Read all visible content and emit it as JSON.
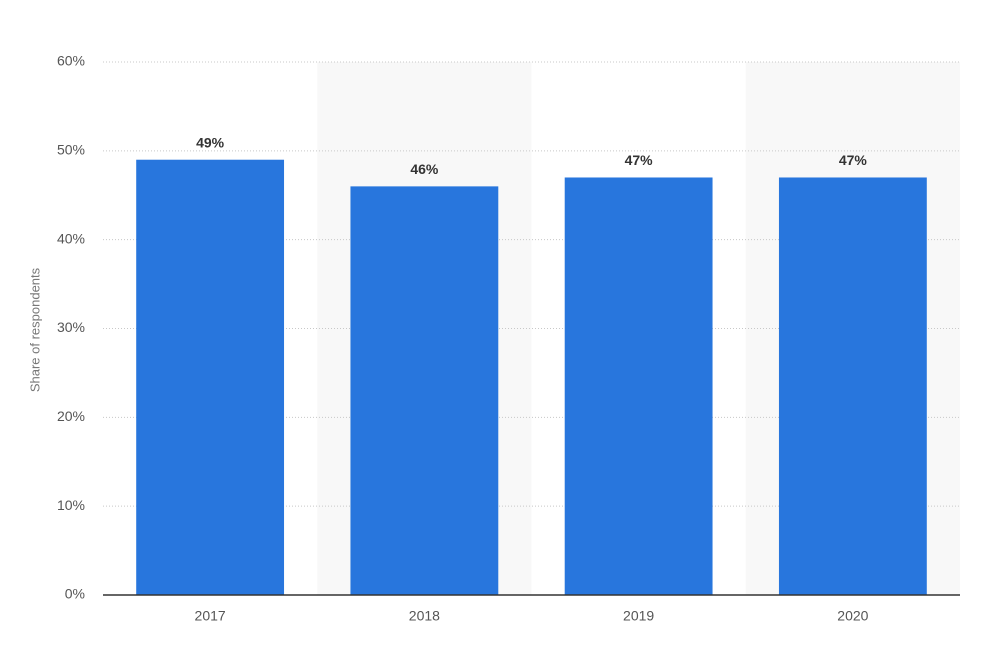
{
  "chart_data": {
    "type": "bar",
    "y_label": "Share of respondents",
    "categories": [
      "2017",
      "2018",
      "2019",
      "2020"
    ],
    "values": [
      49,
      46,
      47,
      47
    ],
    "value_labels": [
      "49%",
      "46%",
      "47%",
      "47%"
    ],
    "color": "#2876dd",
    "ylim": [
      0,
      60
    ],
    "yticks": [
      {
        "value": 0,
        "label": "0%"
      },
      {
        "value": 10,
        "label": "10%"
      },
      {
        "value": 20,
        "label": "20%"
      },
      {
        "value": 30,
        "label": "30%"
      },
      {
        "value": 40,
        "label": "40%"
      },
      {
        "value": 50,
        "label": "50%"
      },
      {
        "value": 60,
        "label": "60%"
      }
    ],
    "grid": true
  }
}
